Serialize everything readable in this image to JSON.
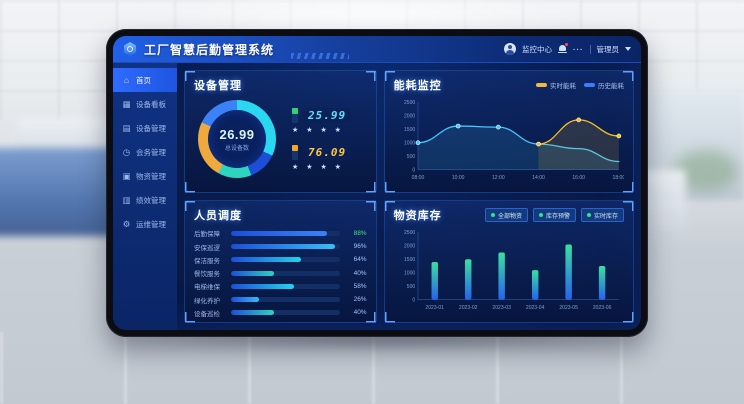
{
  "app": {
    "title": "工厂智慧后勤管理系统",
    "user_center": "监控中心",
    "more": "···",
    "user": "管理员"
  },
  "sidebar": {
    "items": [
      {
        "glyph": "⌂",
        "label": "首页",
        "active": true
      },
      {
        "glyph": "▦",
        "label": "设备看板",
        "active": false
      },
      {
        "glyph": "▤",
        "label": "设备管理",
        "active": false
      },
      {
        "glyph": "◷",
        "label": "会务管理",
        "active": false
      },
      {
        "glyph": "▣",
        "label": "物资管理",
        "active": false
      },
      {
        "glyph": "▥",
        "label": "绩效管理",
        "active": false
      },
      {
        "glyph": "⚙",
        "label": "运维管理",
        "active": false
      }
    ]
  },
  "panels": {
    "equipment": {
      "title": "设备管理",
      "stats": [
        {
          "value": "25.99",
          "stars": "★ ★ ★ ★",
          "indicator_color": "#2fd574",
          "value_color": "#5fe0f2"
        },
        {
          "value": "76.09",
          "stars": "★ ★ ★ ★",
          "indicator_color": "#f5a623",
          "value_color": "#ffc53d"
        }
      ]
    },
    "energy": {
      "title": "能耗监控",
      "legend": [
        {
          "label": "实时能耗",
          "color": "#f5b83d"
        },
        {
          "label": "历史能耗",
          "color": "#3f7bf6"
        }
      ]
    },
    "personnel": {
      "title": "人员调度"
    },
    "inventory": {
      "title": "物资库存",
      "legend": [
        {
          "label": "全部物资"
        },
        {
          "label": "库存预警"
        },
        {
          "label": "实时库存"
        }
      ],
      "legend_dot_color": "#35e08e"
    }
  },
  "chart_data": [
    {
      "id": "equipment-donut",
      "type": "pie",
      "center_value": "26.99",
      "center_label": "总设备数",
      "segments": [
        {
          "color": "#29d8f0",
          "pct": 32
        },
        {
          "color": "#1d4ed8",
          "pct": 12
        },
        {
          "color": "#2dd4bf",
          "pct": 14
        },
        {
          "color": "#f0a93c",
          "pct": 24
        },
        {
          "color": "#3b82f6",
          "pct": 18
        }
      ]
    },
    {
      "id": "energy-line",
      "type": "line",
      "x": [
        "08:00",
        "10:00",
        "12:00",
        "14:00",
        "16:00",
        "18:00"
      ],
      "ylim": [
        0,
        2500
      ],
      "yticks": [
        0,
        500,
        1000,
        1500,
        2000,
        2500
      ],
      "series": [
        {
          "name": "历史能耗",
          "color": "#45c6ff",
          "values": [
            1000,
            1620,
            1580,
            950,
            780,
            300
          ],
          "dots": [
            0,
            1,
            2
          ]
        },
        {
          "name": "实时能耗",
          "color": "#fbbf24",
          "values": [
            null,
            null,
            null,
            950,
            1850,
            1250
          ],
          "dots": [
            3,
            4,
            5
          ]
        }
      ]
    },
    {
      "id": "personnel-hbar",
      "type": "hbar",
      "rows": [
        {
          "label": "后勤保障",
          "value": 88,
          "display": "88%",
          "bar_color": "#3b82f6",
          "pct_color": "#4ade80"
        },
        {
          "label": "安保巡逻",
          "value": 96,
          "display": "96%",
          "bar_color": "#38bdf8",
          "pct_color": "#9fc3ff"
        },
        {
          "label": "保洁服务",
          "value": 64,
          "display": "64%",
          "bar_color": "#22d3ee",
          "pct_color": "#9fc3ff"
        },
        {
          "label": "餐饮服务",
          "value": 40,
          "display": "40%",
          "bar_color": "#2dd4bf",
          "pct_color": "#9fc3ff"
        },
        {
          "label": "电梯维保",
          "value": 58,
          "display": "58%",
          "bar_color": "#22d3ee",
          "pct_color": "#9fc3ff"
        },
        {
          "label": "绿化养护",
          "value": 26,
          "display": "26%",
          "bar_color": "#38bdf8",
          "pct_color": "#9fc3ff"
        },
        {
          "label": "设备巡检",
          "value": 40,
          "display": "40%",
          "bar_color": "#2dd4bf",
          "pct_color": "#9fc3ff"
        }
      ]
    },
    {
      "id": "inventory-bar",
      "type": "bar",
      "categories": [
        "2023-01",
        "2023-02",
        "2023-03",
        "2023-04",
        "2023-05",
        "2023-06"
      ],
      "values": [
        1400,
        1500,
        1750,
        1100,
        2050,
        1250
      ],
      "ylim": [
        0,
        2500
      ],
      "yticks": [
        0,
        500,
        1000,
        1500,
        2000,
        2500
      ],
      "bar_top_color": "#3ae0a0",
      "bar_bottom_color": "#2563eb"
    }
  ]
}
